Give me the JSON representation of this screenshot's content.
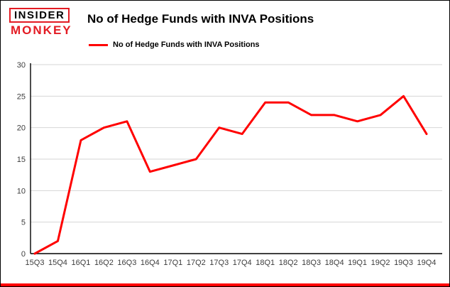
{
  "logo": {
    "top": "INSIDER",
    "bottom": "MONKEY",
    "accent_color": "#e31b23"
  },
  "header": {
    "title": "No of Hedge Funds with INVA Positions"
  },
  "legend": {
    "label": "No of Hedge Funds with INVA Positions",
    "color": "#ff0000"
  },
  "chart_data": {
    "type": "line",
    "title": "No of Hedge Funds with INVA Positions",
    "categories": [
      "15Q3",
      "15Q4",
      "16Q1",
      "16Q2",
      "16Q3",
      "16Q4",
      "17Q1",
      "17Q2",
      "17Q3",
      "17Q4",
      "18Q1",
      "18Q2",
      "18Q3",
      "18Q4",
      "19Q1",
      "19Q2",
      "19Q3",
      "19Q4"
    ],
    "values": [
      0,
      2,
      18,
      20,
      21,
      13,
      14,
      15,
      20,
      19,
      24,
      24,
      22,
      22,
      21,
      22,
      25,
      19
    ],
    "xlabel": "",
    "ylabel": "",
    "ylim": [
      0,
      30
    ],
    "yticks": [
      0,
      5,
      10,
      15,
      20,
      25,
      30
    ],
    "grid": true,
    "line_color": "#ff0000",
    "legend_position": "top-left"
  }
}
